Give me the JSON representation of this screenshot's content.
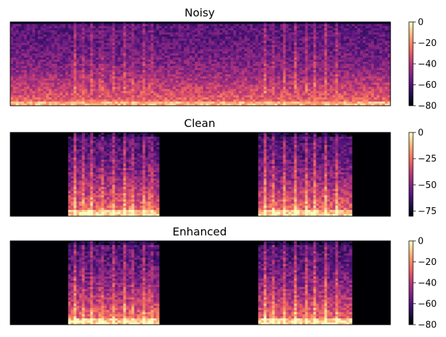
{
  "chart_data": [
    {
      "type": "heatmap",
      "title": "Noisy",
      "colormap": "magma",
      "colorbar": {
        "range": [
          -80,
          0
        ],
        "ticks": [
          0,
          -20,
          -40,
          -60,
          -80
        ],
        "tick_labels": [
          "0",
          "−20",
          "−40",
          "−60",
          "−80"
        ]
      },
      "content": "noise",
      "speech_segments": []
    },
    {
      "type": "heatmap",
      "title": "Clean",
      "colormap": "magma",
      "colorbar": {
        "range": [
          -80,
          0
        ],
        "ticks": [
          0,
          -25,
          -50,
          -75
        ],
        "tick_labels": [
          "0",
          "−25",
          "−50",
          "−75"
        ]
      },
      "content": "speech",
      "speech_segments": [
        [
          0.155,
          0.39
        ],
        [
          0.65,
          0.9
        ]
      ]
    },
    {
      "type": "heatmap",
      "title": "Enhanced",
      "colormap": "magma",
      "colorbar": {
        "range": [
          -80,
          0
        ],
        "ticks": [
          0,
          -20,
          -40,
          -60,
          -80
        ],
        "tick_labels": [
          "0",
          "−20",
          "−40",
          "−60",
          "−80"
        ]
      },
      "content": "speech",
      "speech_segments": [
        [
          0.155,
          0.39
        ],
        [
          0.65,
          0.9
        ]
      ]
    }
  ],
  "colors": {
    "magma_stops": [
      "#000004",
      "#1c1044",
      "#4f127b",
      "#812581",
      "#b5367a",
      "#e55964",
      "#fb8761",
      "#fec287",
      "#fcfdbf"
    ]
  }
}
